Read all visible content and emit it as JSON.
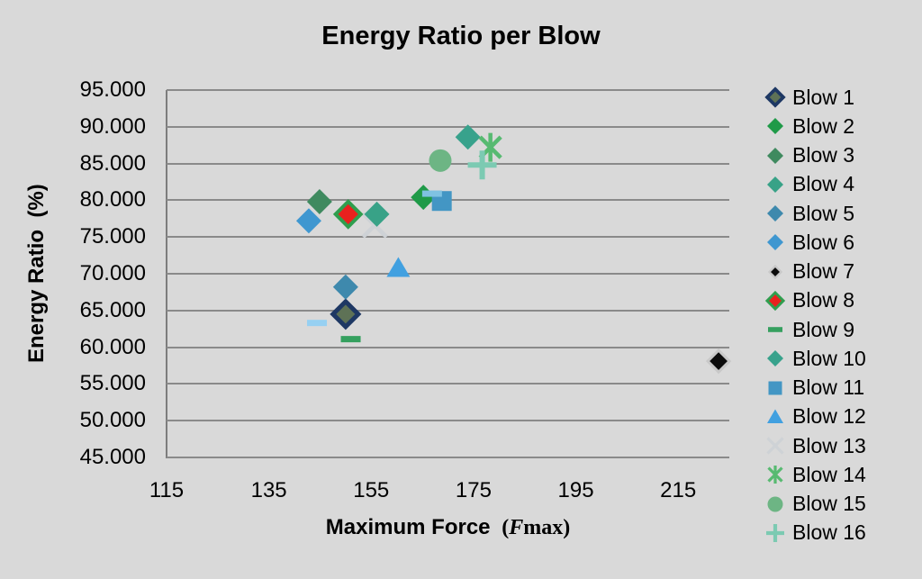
{
  "chart_data": {
    "type": "scatter",
    "title": "Energy Ratio per Blow",
    "ylabel": "Energy Ratio  (%)",
    "xlabel": "Maximum Force (Fmax)",
    "xlabel_parts": {
      "main": "Maximum Force ",
      "open": " (",
      "f": "F",
      "rest": "max)"
    },
    "xlim": [
      115,
      225
    ],
    "ylim": [
      45,
      95
    ],
    "grid": "horizontal",
    "legend_position": "right",
    "background": "#d9d9d9",
    "gridline_color": "#8a8a8a",
    "axis_line_color": "#7d7d7d",
    "x_ticks": [
      {
        "value": 115,
        "label": "115"
      },
      {
        "value": 135,
        "label": "135"
      },
      {
        "value": 155,
        "label": "155"
      },
      {
        "value": 175,
        "label": "175"
      },
      {
        "value": 195,
        "label": "195"
      },
      {
        "value": 215,
        "label": "215"
      }
    ],
    "y_ticks": [
      {
        "value": 95,
        "label": "95.000"
      },
      {
        "value": 90,
        "label": "90.000"
      },
      {
        "value": 85,
        "label": "85.000"
      },
      {
        "value": 80,
        "label": "80.000"
      },
      {
        "value": 75,
        "label": "75.000"
      },
      {
        "value": 70,
        "label": "70.000"
      },
      {
        "value": 65,
        "label": "65.000"
      },
      {
        "value": 60,
        "label": "60.000"
      },
      {
        "value": 55,
        "label": "55.000"
      },
      {
        "value": 50,
        "label": "50.000"
      },
      {
        "value": 45,
        "label": "45.000"
      }
    ],
    "series": [
      {
        "name": "Blow 1",
        "marker": "diamond",
        "color": "#5e7256",
        "stroke": "#1e3864",
        "stroke_width": 5,
        "x": 150.0,
        "y": 64.5
      },
      {
        "name": "Blow 2",
        "marker": "diamond",
        "color": "#1f9a48",
        "x": 165.2,
        "y": 80.4
      },
      {
        "name": "Blow 3",
        "marker": "diamond",
        "color": "#3f8a5f",
        "x": 144.9,
        "y": 79.8
      },
      {
        "name": "Blow 4",
        "marker": "diamond",
        "color": "#38a287",
        "x": 156.1,
        "y": 78.1
      },
      {
        "name": "Blow 5",
        "marker": "diamond",
        "color": "#3e89ad",
        "x": 150.0,
        "y": 68.2
      },
      {
        "name": "Blow 6",
        "marker": "diamond",
        "color": "#3f97d0",
        "x": 142.8,
        "y": 77.2
      },
      {
        "name": "Blow 7",
        "marker": "diamond",
        "color": "#0c0c0c",
        "stroke": "#c8c8c8",
        "stroke_width": 3,
        "small": true,
        "x": 222.9,
        "y": 58.1
      },
      {
        "name": "Blow 8",
        "marker": "diamond",
        "color": "#e9211e",
        "stroke": "#2f9e4e",
        "stroke_width": 4,
        "x": 150.5,
        "y": 78.1
      },
      {
        "name": "Blow 9",
        "marker": "dash",
        "color": "#35a05f",
        "x": 151.0,
        "y": 61.1
      },
      {
        "name": "Blow 10",
        "marker": "diamond",
        "color": "#38a28c",
        "x": 173.9,
        "y": 88.6
      },
      {
        "name": "Blow 11",
        "marker": "square",
        "color": "#4396c4",
        "x": 168.8,
        "y": 79.9
      },
      {
        "name": "Blow 12",
        "marker": "triangle",
        "color": "#41a0e0",
        "x": 160.3,
        "y": 70.8
      },
      {
        "name": "Blow 13",
        "marker": "x",
        "color": "#ced2d6",
        "x": 155.7,
        "y": 76.6
      },
      {
        "name": "Blow 14",
        "marker": "asterisk",
        "color": "#57ba71",
        "x": 178.3,
        "y": 87.2
      },
      {
        "name": "Blow 15",
        "marker": "circle",
        "color": "#6db584",
        "x": 168.5,
        "y": 85.4
      },
      {
        "name": "Blow 16",
        "marker": "plus",
        "color": "#7ccab2",
        "x": 176.7,
        "y": 84.8
      }
    ],
    "extra_marks": [
      {
        "name": "unlabeled-dash-1",
        "marker": "dash",
        "color": "#96d0f2",
        "x": 144.4,
        "y": 63.3
      },
      {
        "name": "unlabeled-dash-2",
        "marker": "dash",
        "color": "#7fc2e2",
        "x": 166.9,
        "y": 80.9
      }
    ],
    "draw_order": [
      "Blow 13",
      "Blow 1",
      "Blow 2",
      "Blow 3",
      "Blow 4",
      "Blow 5",
      "Blow 6",
      "Blow 7",
      "Blow 8",
      "Blow 9",
      "Blow 10",
      "Blow 11",
      "Blow 12",
      "Blow 14",
      "Blow 15",
      "Blow 16"
    ]
  }
}
